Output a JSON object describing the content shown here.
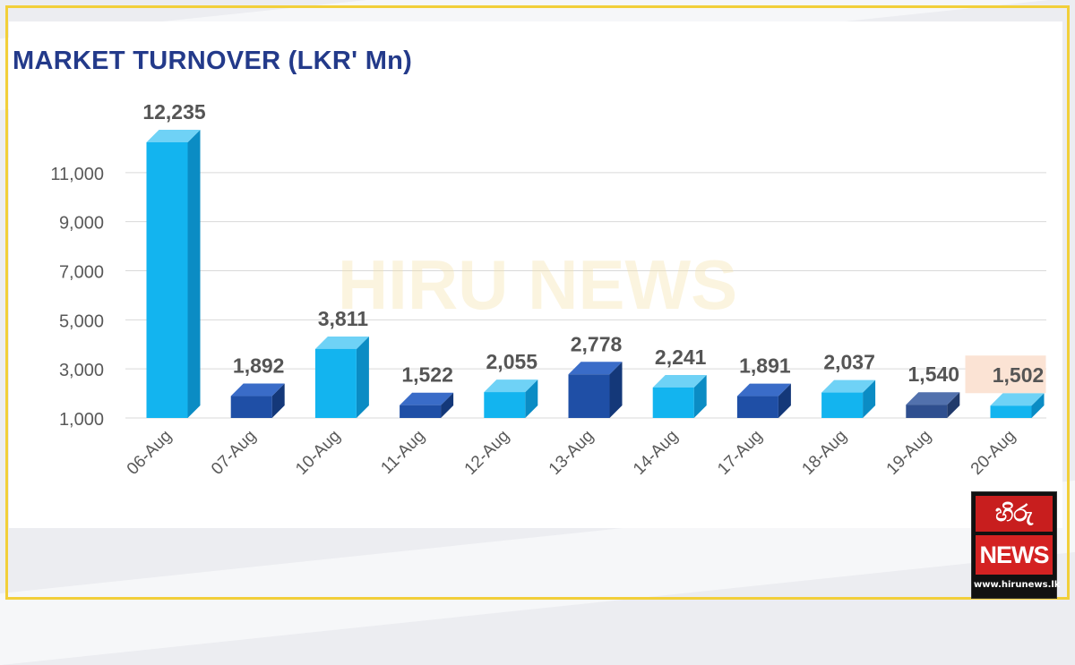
{
  "watermark": "HIRU NEWS",
  "logo": {
    "top_text": "හිරු",
    "news": "NEWS",
    "url": "www.hirunews.lk"
  },
  "colors": {
    "frame": "#f2cf3a",
    "title": "#233a8a",
    "light_bar": "#13b4ef",
    "dark_bar": "#1f4fa6",
    "highlight_box": "#fbe3d4"
  },
  "chart_data": {
    "type": "bar",
    "title": "MARKET TURNOVER (LKR' Mn)",
    "categories": [
      "06-Aug",
      "07-Aug",
      "10-Aug",
      "11-Aug",
      "12-Aug",
      "13-Aug",
      "14-Aug",
      "17-Aug",
      "18-Aug",
      "19-Aug",
      "20-Aug"
    ],
    "values": [
      12235,
      1892,
      3811,
      1522,
      2055,
      2778,
      2241,
      1891,
      2037,
      1540,
      1502
    ],
    "data_labels": [
      "12,235",
      "1,892",
      "3,811",
      "1,522",
      "2,055",
      "2,778",
      "2,241",
      "1,891",
      "2,037",
      "1,540",
      "1,502"
    ],
    "bar_styles": [
      "light",
      "dark",
      "light",
      "dark",
      "light",
      "dark",
      "light",
      "dark",
      "light",
      "slate",
      "light"
    ],
    "highlighted_index": 10,
    "ylim": [
      1000,
      12235
    ],
    "yticks": [
      1000,
      3000,
      5000,
      7000,
      9000,
      11000
    ],
    "ytick_labels": [
      "1,000",
      "3,000",
      "5,000",
      "7,000",
      "9,000",
      "11,000"
    ],
    "grid": true,
    "xlabel": "",
    "ylabel": ""
  }
}
